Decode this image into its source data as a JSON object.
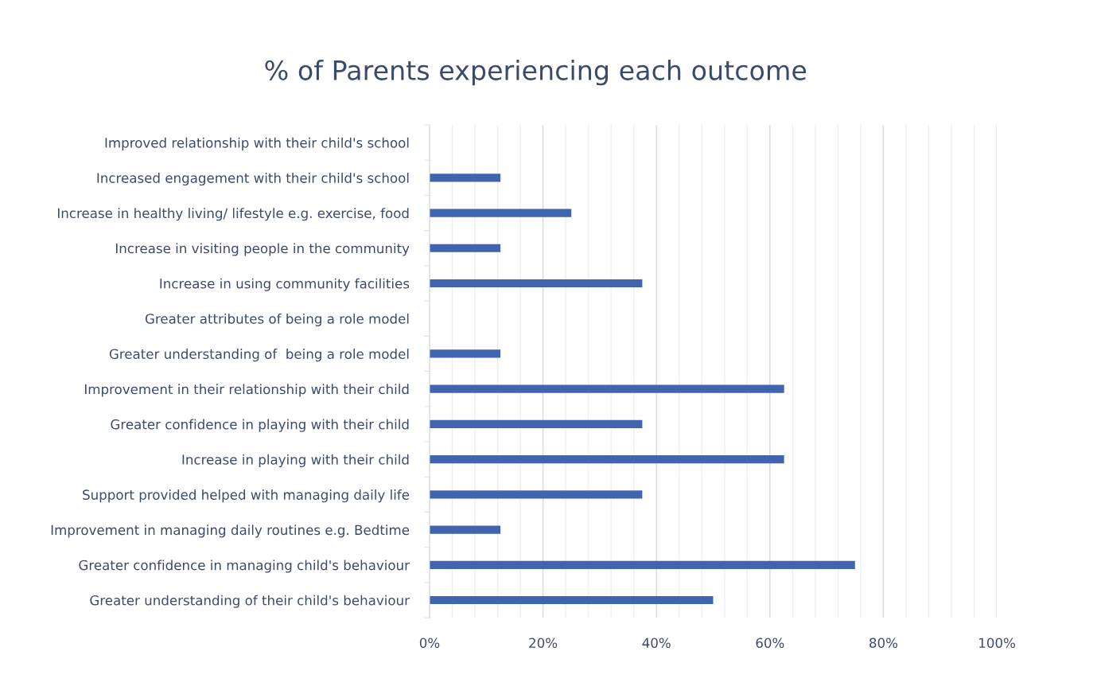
{
  "chart_data": {
    "type": "bar",
    "orientation": "horizontal",
    "title": "% of Parents experiencing each outcome",
    "categories": [
      "Improved relationship with their child's school",
      "Increased engagement with their child's school",
      "Increase in healthy living/ lifestyle e.g. exercise, food",
      "Increase in visiting people in the community",
      "Increase in using community facilities",
      "Greater attributes of being a role model",
      "Greater understanding of  being a role model",
      "Improvement in their relationship with their child",
      "Greater confidence in playing with their child",
      "Increase in playing with their child",
      "Support provided helped with managing daily life",
      "Improvement in managing daily routines e.g. Bedtime",
      "Greater confidence in managing child's behaviour",
      "Greater understanding of their child's behaviour"
    ],
    "values": [
      0,
      12.5,
      25,
      12.5,
      37.5,
      0,
      12.5,
      62.5,
      37.5,
      62.5,
      37.5,
      12.5,
      75,
      50
    ],
    "color": "#4064ad",
    "xlim": [
      0,
      100
    ],
    "xticks": [
      {
        "value": 0,
        "label": "0%"
      },
      {
        "value": 4,
        "label": null
      },
      {
        "value": 8,
        "label": null
      },
      {
        "value": 12,
        "label": null
      },
      {
        "value": 16,
        "label": null
      },
      {
        "value": 20,
        "label": "20%"
      },
      {
        "value": 24,
        "label": null
      },
      {
        "value": 28,
        "label": null
      },
      {
        "value": 32,
        "label": null
      },
      {
        "value": 36,
        "label": null
      },
      {
        "value": 40,
        "label": "40%"
      },
      {
        "value": 44,
        "label": null
      },
      {
        "value": 48,
        "label": null
      },
      {
        "value": 52,
        "label": null
      },
      {
        "value": 56,
        "label": null
      },
      {
        "value": 60,
        "label": "60%"
      },
      {
        "value": 64,
        "label": null
      },
      {
        "value": 68,
        "label": null
      },
      {
        "value": 72,
        "label": null
      },
      {
        "value": 76,
        "label": null
      },
      {
        "value": 80,
        "label": "80%"
      },
      {
        "value": 84,
        "label": null
      },
      {
        "value": 88,
        "label": null
      },
      {
        "value": 92,
        "label": null
      },
      {
        "value": 96,
        "label": null
      },
      {
        "value": 100,
        "label": "100%"
      }
    ],
    "grid": "x"
  }
}
